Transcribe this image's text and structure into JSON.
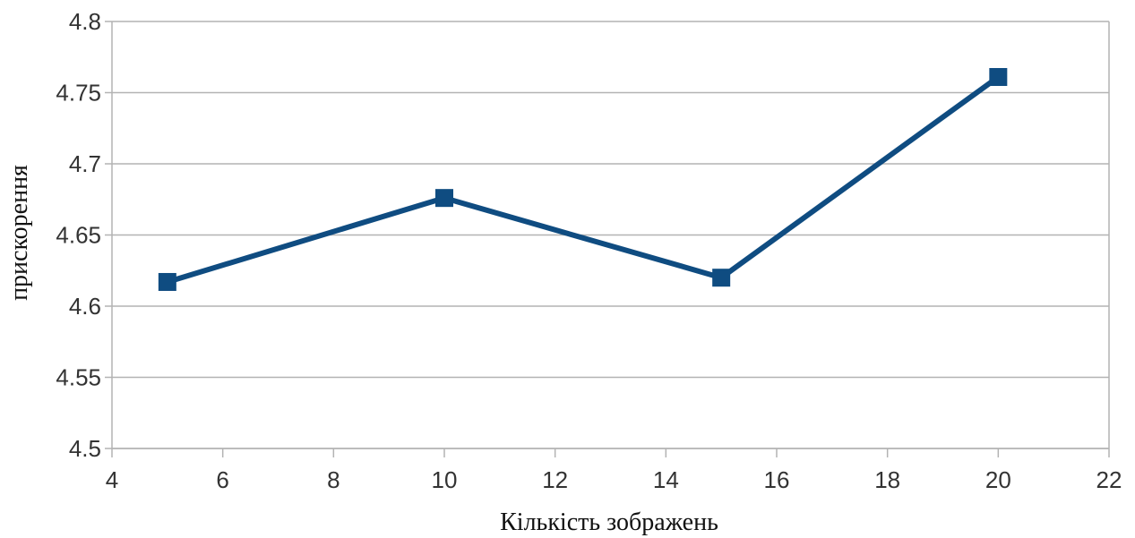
{
  "chart_data": {
    "type": "line",
    "title": "",
    "xlabel": "Кількість зображень",
    "ylabel": "прискорення",
    "xlim": [
      4,
      22
    ],
    "ylim": [
      4.5,
      4.8
    ],
    "x_ticks": [
      4,
      6,
      8,
      10,
      12,
      14,
      16,
      18,
      20,
      22
    ],
    "y_ticks": [
      4.5,
      4.55,
      4.6,
      4.65,
      4.7,
      4.75,
      4.8
    ],
    "x_tick_labels": [
      "4",
      "6",
      "8",
      "10",
      "12",
      "14",
      "16",
      "18",
      "20",
      "22"
    ],
    "y_tick_labels": [
      "4.5",
      "4.55",
      "4.6",
      "4.65",
      "4.7",
      "4.75",
      "4.8"
    ],
    "grid": "horizontal",
    "legend": "none",
    "series": [
      {
        "color": "#0f4c81",
        "marker": "square",
        "x": [
          5,
          10,
          15,
          20
        ],
        "values": [
          4.617,
          4.676,
          4.62,
          4.761
        ]
      }
    ],
    "colors": {
      "line": "#0f4c81",
      "grid": "#b3b3b3",
      "axis": "#b3b3b3"
    }
  }
}
